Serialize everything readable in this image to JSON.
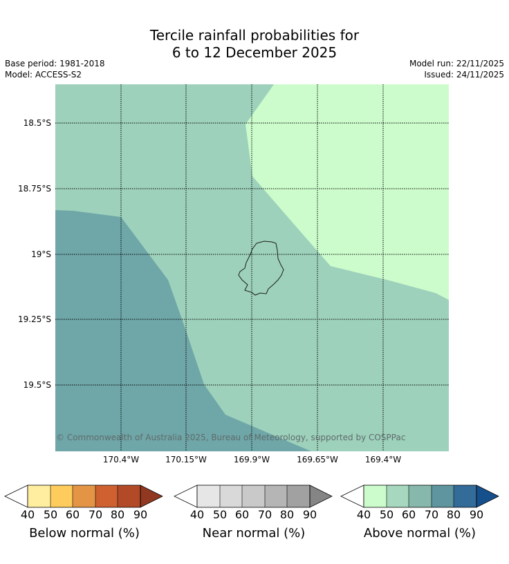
{
  "title": {
    "line1": "Tercile rainfall probabilities for",
    "line2": "6 to 12 December 2025"
  },
  "meta": {
    "base_period": "Base period: 1981-2018",
    "model": "Model: ACCESS-S2",
    "model_run": "Model run: 22/11/2025",
    "issued": "Issued: 24/11/2025"
  },
  "map": {
    "lat_labels": [
      "18.5°S",
      "18.75°S",
      "19°S",
      "19.25°S",
      "19.5°S"
    ],
    "lon_labels": [
      "170.4°W",
      "170.15°W",
      "169.9°W",
      "169.65°W",
      "169.4°W"
    ],
    "copyright": "© Commonwealth of Australia 2025, Bureau of Meteorology, supported by COSPPac",
    "regions": [
      {
        "name": "above-normal-50-60",
        "color": "#9dd1bb"
      },
      {
        "name": "above-normal-40-50",
        "color": "#ccfccc"
      },
      {
        "name": "above-normal-70-80",
        "color": "#6fa6a8"
      }
    ]
  },
  "colorbars": [
    {
      "label": "Below normal (%)",
      "colors": [
        "#ffeda0",
        "#fecc5c",
        "#e39545",
        "#cf6030",
        "#b24a27"
      ],
      "end_color": "#913820",
      "ticks": [
        "40",
        "50",
        "60",
        "70",
        "80",
        "90"
      ]
    },
    {
      "label": "Near normal (%)",
      "colors": [
        "#e6e6e6",
        "#d9d9d9",
        "#c9c9c9",
        "#b5b5b5",
        "#a1a1a1"
      ],
      "end_color": "#858585",
      "ticks": [
        "40",
        "50",
        "60",
        "70",
        "80",
        "90"
      ]
    },
    {
      "label": "Above normal (%)",
      "colors": [
        "#ccfccc",
        "#a7d8bf",
        "#86b8ab",
        "#5e959f",
        "#336b99"
      ],
      "end_color": "#16508c",
      "ticks": [
        "40",
        "50",
        "60",
        "70",
        "80",
        "90"
      ]
    }
  ]
}
